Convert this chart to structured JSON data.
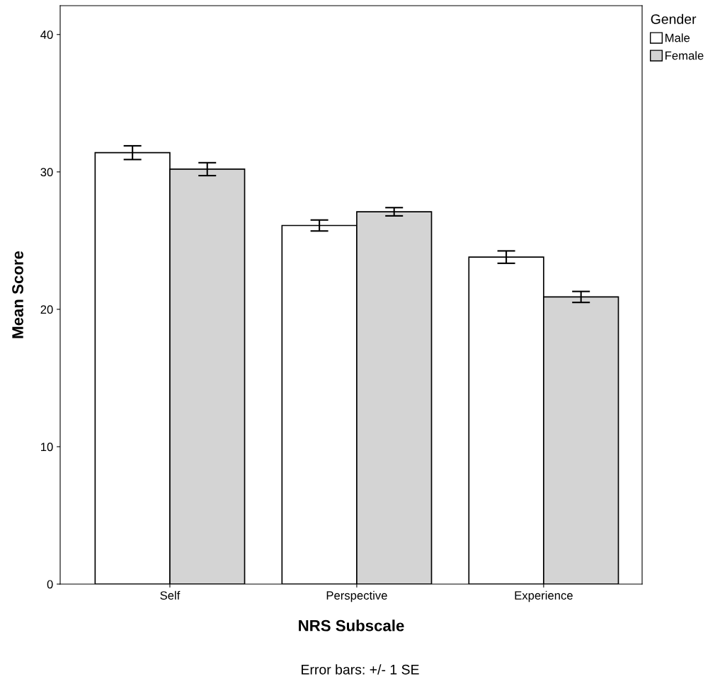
{
  "chart_data": {
    "type": "bar",
    "xlabel": "NRS Subscale",
    "ylabel": "Mean Score",
    "legend_title": "Gender",
    "categories": [
      "Self",
      "Perspective",
      "Experience"
    ],
    "series": [
      {
        "name": "Male",
        "color": "#ffffff",
        "values": [
          31.4,
          26.1,
          23.8
        ],
        "errors": [
          0.5,
          0.4,
          0.45
        ]
      },
      {
        "name": "Female",
        "color": "#d4d4d4",
        "values": [
          30.2,
          27.1,
          20.9
        ],
        "errors": [
          0.47,
          0.3,
          0.4
        ]
      }
    ],
    "ylim": [
      0,
      42.1
    ],
    "yticks": [
      0,
      10,
      20,
      30,
      40
    ],
    "grid": false,
    "legend": "top right",
    "annotations": [
      "Error bars: +/- 1 SE"
    ]
  }
}
